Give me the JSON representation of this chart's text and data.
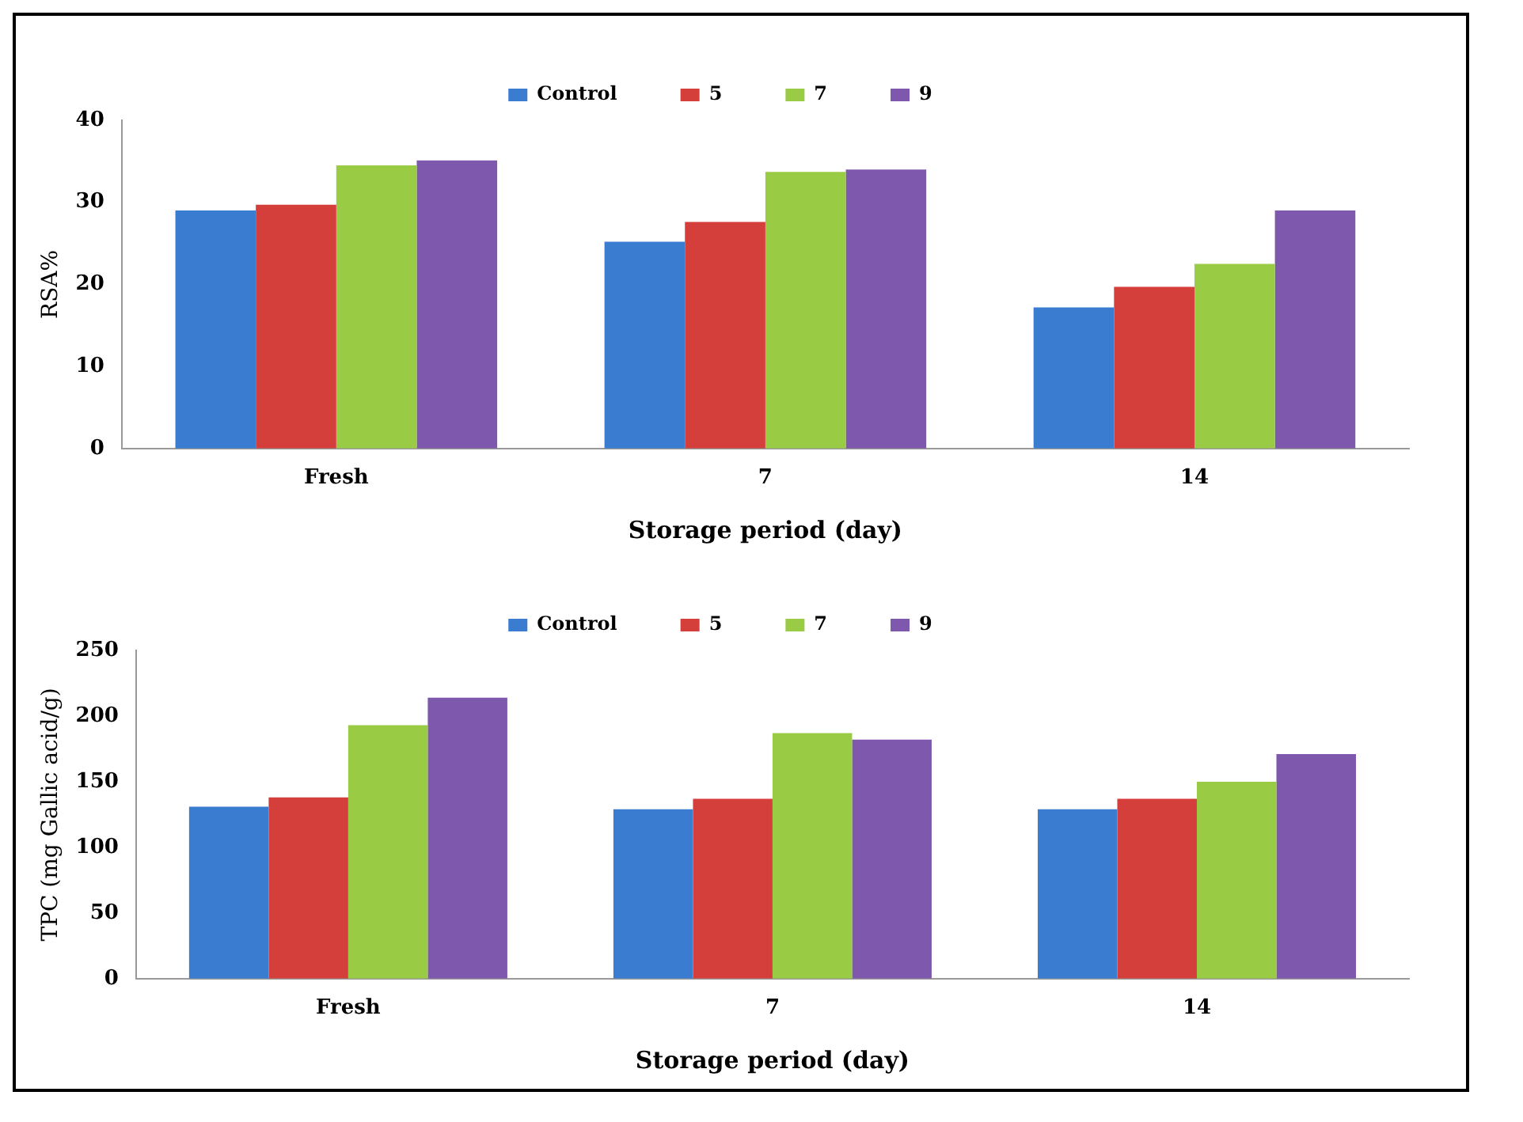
{
  "chart_data": [
    {
      "type": "bar",
      "categories": [
        "Fresh",
        "7",
        "14"
      ],
      "xlabel": "Storage period (day)",
      "ylabel": "RSA%",
      "ylim": [
        0,
        40
      ],
      "yticks": [
        0,
        10,
        20,
        30,
        40
      ],
      "grid": false,
      "legend": "top",
      "series": [
        {
          "name": "Control",
          "color": "#3a7dd0",
          "values": [
            29,
            25.2,
            17.2
          ]
        },
        {
          "name": "5",
          "color": "#d43f3c",
          "values": [
            29.7,
            27.6,
            19.7
          ]
        },
        {
          "name": "7",
          "color": "#9acb45",
          "values": [
            34.5,
            33.7,
            22.5
          ]
        },
        {
          "name": "9",
          "color": "#7d58ac",
          "values": [
            35.1,
            34,
            29
          ]
        }
      ]
    },
    {
      "type": "bar",
      "categories": [
        "Fresh",
        "7",
        "14"
      ],
      "xlabel": "Storage period (day)",
      "ylabel": "TPC (mg Gallic acid/g)",
      "ylim": [
        0,
        250
      ],
      "yticks": [
        0,
        50,
        100,
        150,
        200,
        250
      ],
      "grid": false,
      "legend": "top",
      "series": [
        {
          "name": "Control",
          "color": "#3a7dd0",
          "values": [
            131,
            129,
            129
          ]
        },
        {
          "name": "5",
          "color": "#d43f3c",
          "values": [
            138,
            137,
            137
          ]
        },
        {
          "name": "7",
          "color": "#9acb45",
          "values": [
            193,
            187,
            150
          ]
        },
        {
          "name": "9",
          "color": "#7d58ac",
          "values": [
            214,
            182,
            171
          ]
        }
      ]
    }
  ]
}
